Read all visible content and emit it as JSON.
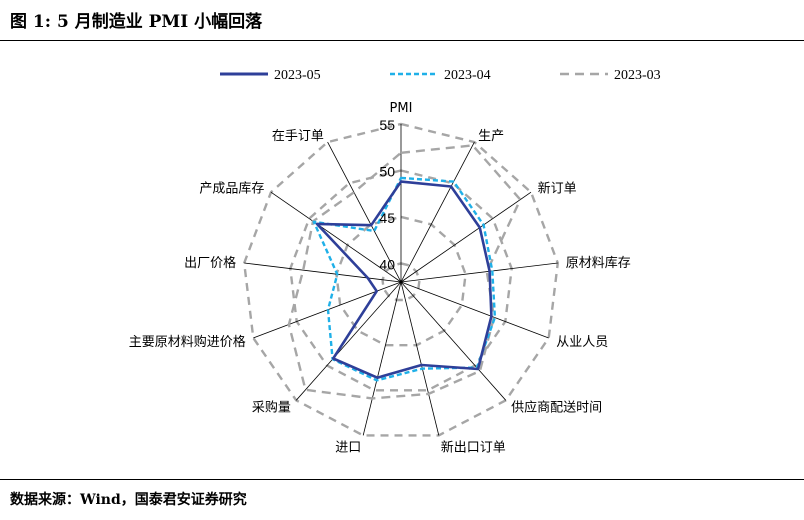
{
  "header": {
    "title": "图 1: 5 月制造业 PMI 小幅回落"
  },
  "footer": {
    "source": "数据来源：Wind，国泰君安证券研究"
  },
  "chart_data": {
    "type": "radar",
    "title": "",
    "categories": [
      "PMI",
      "生产",
      "新订单",
      "原材料库存",
      "从业人员",
      "供应商配送时间",
      "新出口订单",
      "进口",
      "采购量",
      "主要原材料购进价格",
      "出厂价格",
      "产成品库存",
      "在手订单"
    ],
    "r_ticks": [
      40,
      45,
      50,
      55
    ],
    "rlim": [
      38,
      55
    ],
    "grid_lines": "spokes and rings at ticks",
    "legend_position": "top",
    "series": [
      {
        "name": "2023-05",
        "color": "#2e3f99",
        "dash": "solid",
        "values": [
          48.8,
          49.6,
          48.3,
          47.6,
          48.4,
          50.5,
          47.2,
          48.6,
          49.0,
          40.8,
          41.6,
          49.0,
          44.9
        ]
      },
      {
        "name": "2023-04",
        "color": "#1fb0e8",
        "dash": "dashed",
        "values": [
          49.2,
          50.2,
          48.8,
          47.9,
          48.8,
          50.3,
          47.6,
          48.9,
          49.1,
          46.4,
          44.9,
          49.4,
          44.2
        ]
      },
      {
        "name": "2023-03",
        "color": "#a6a6a6",
        "dash": "long-dashed",
        "values": [
          51.9,
          54.6,
          53.6,
          47.3,
          48.7,
          50.8,
          50.4,
          50.9,
          53.5,
          50.9,
          48.6,
          49.5,
          48.9
        ]
      }
    ]
  }
}
